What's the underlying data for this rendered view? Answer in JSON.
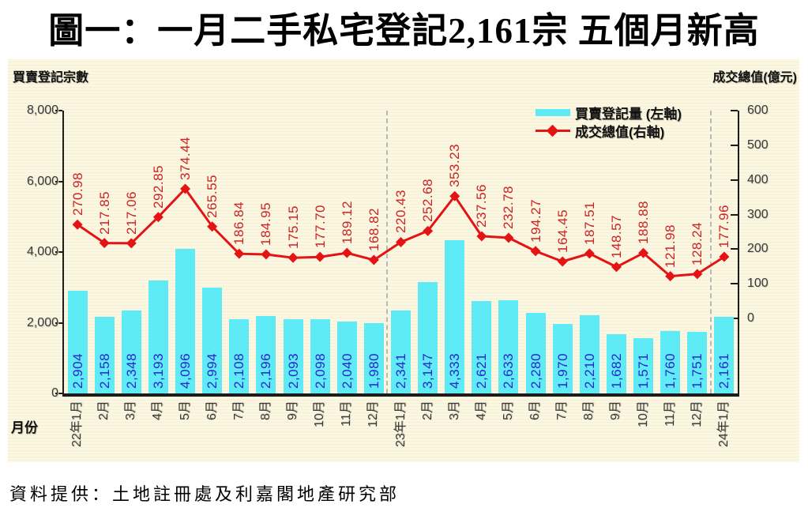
{
  "title": "圖一：一月二手私宅登記2,161宗  五個月新高",
  "footer": "資料提供：土地註冊處及利嘉閣地產研究部",
  "axis_labels": {
    "left_unit": "買賣登記宗數",
    "right_unit": "成交總值(億元)",
    "x_title": "月份"
  },
  "legend": {
    "items": [
      {
        "label": "買賣登記量 (左軸)",
        "type": "bar"
      },
      {
        "label": "成交總值(右軸)",
        "type": "line"
      }
    ]
  },
  "colors": {
    "bar": "#5FEBF5",
    "bar_value_text": "#2626CC",
    "line": "#E51414",
    "line_value_text": "#CC2222",
    "chart_background": "#FBF7E1",
    "axis": "#1b1b1b"
  },
  "chart_data": {
    "type": "bar",
    "subtype": "bar+line dual axis",
    "categories": [
      "22年1月",
      "2月",
      "3月",
      "4月",
      "5月",
      "6月",
      "7月",
      "8月",
      "9月",
      "10月",
      "11月",
      "12月",
      "23年1月",
      "2月",
      "3月",
      "4月",
      "5月",
      "6月",
      "7月",
      "8月",
      "9月",
      "10月",
      "11月",
      "12月",
      "24年1月"
    ],
    "series": [
      {
        "name": "買賣登記量 (左軸)",
        "type": "bar",
        "axis": "left",
        "values": [
          2904,
          2158,
          2348,
          3193,
          4096,
          2994,
          2108,
          2196,
          2093,
          2098,
          2040,
          1980,
          2341,
          3147,
          4333,
          2621,
          2633,
          2280,
          1970,
          2210,
          1682,
          1571,
          1760,
          1751,
          2161
        ]
      },
      {
        "name": "成交總值(右軸)",
        "type": "line",
        "axis": "right",
        "values": [
          270.98,
          217.85,
          217.06,
          292.85,
          374.44,
          265.55,
          186.84,
          184.95,
          175.15,
          177.7,
          189.12,
          168.82,
          220.43,
          252.68,
          353.23,
          237.56,
          232.78,
          194.27,
          164.45,
          187.51,
          148.57,
          188.88,
          121.98,
          128.24,
          177.96
        ]
      }
    ],
    "left_axis": {
      "label": "買賣登記宗數",
      "min": 0,
      "max": 8000,
      "ticks": [
        0,
        2000,
        4000,
        6000,
        8000
      ]
    },
    "right_axis": {
      "label": "成交總值(億元)",
      "min": 0,
      "max": 600,
      "ticks": [
        0,
        100,
        200,
        300,
        400,
        500,
        600
      ]
    },
    "xlabel": "月份",
    "separators_after_index": [
      11,
      23
    ],
    "grid": false,
    "legend_position": "top-right-inside"
  }
}
